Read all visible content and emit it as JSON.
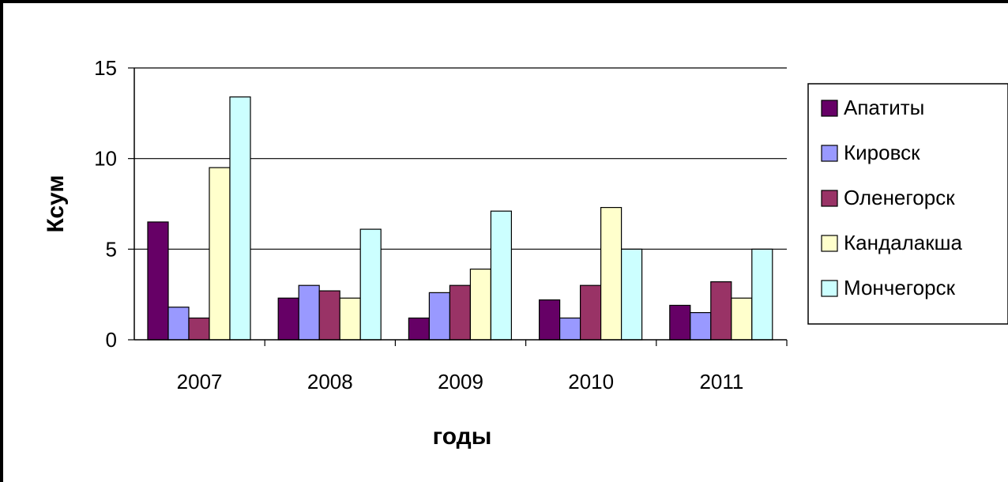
{
  "chart_data": {
    "type": "bar",
    "title": "",
    "xlabel": "годы",
    "ylabel": "Ксум",
    "ylim": [
      0,
      15
    ],
    "yticks": [
      "0",
      "5",
      "10",
      "15"
    ],
    "grid": true,
    "legend_position": "right",
    "categories": [
      "2007",
      "2008",
      "2009",
      "2010",
      "2011"
    ],
    "series": [
      {
        "name": "Апатиты",
        "color": "#660066",
        "values": [
          6.5,
          2.3,
          1.2,
          2.2,
          1.9
        ]
      },
      {
        "name": "Кировск",
        "color": "#9999ff",
        "values": [
          1.8,
          3.0,
          2.6,
          1.2,
          1.5
        ]
      },
      {
        "name": "Оленегорск",
        "color": "#993366",
        "values": [
          1.2,
          2.7,
          3.0,
          3.0,
          3.2
        ]
      },
      {
        "name": "Кандалакша",
        "color": "#ffffcc",
        "values": [
          9.5,
          2.3,
          3.9,
          7.3,
          2.3
        ]
      },
      {
        "name": "Мончегорск",
        "color": "#ccffff",
        "values": [
          13.4,
          6.1,
          7.1,
          5.0,
          5.0
        ]
      }
    ]
  }
}
